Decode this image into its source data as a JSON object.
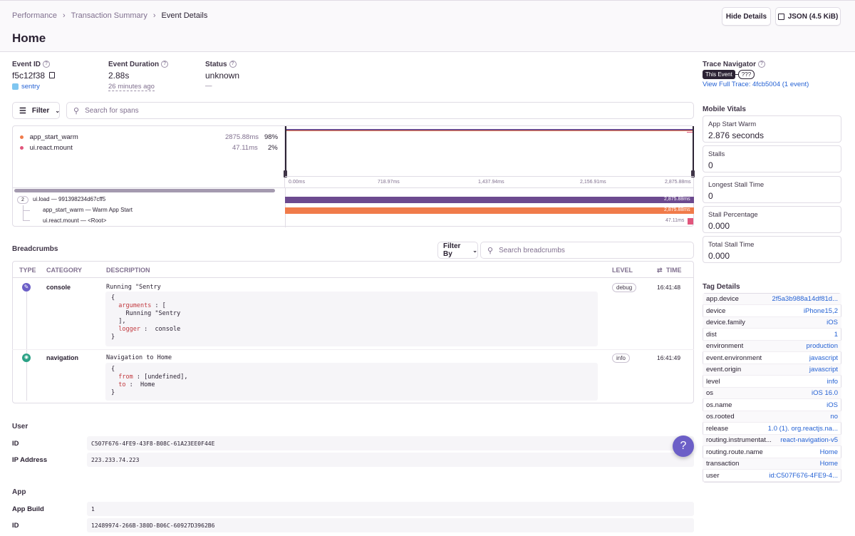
{
  "breadcrumb": [
    "Performance",
    "Transaction Summary",
    "Event Details"
  ],
  "page_title": "Home",
  "buttons": {
    "hide_details": "Hide Details",
    "json": "JSON (4.5 KiB)"
  },
  "event": {
    "id_label": "Event ID",
    "id": "f5c12f38",
    "project": "sentry",
    "duration_label": "Event Duration",
    "duration": "2.88s",
    "relative_time": "26 minutes ago",
    "status_label": "Status",
    "status": "unknown",
    "status_sub": "—"
  },
  "filter": {
    "label": "Filter",
    "search_placeholder": "Search for spans"
  },
  "ops": [
    {
      "name": "app_start_warm",
      "duration": "2875.88ms",
      "percent": "98%",
      "color": "#f07b4a"
    },
    {
      "name": "ui.react.mount",
      "duration": "47.11ms",
      "percent": "2%",
      "color": "#e1567c"
    }
  ],
  "timeline_ticks": [
    "0.00ms",
    "718.97ms",
    "1,437.94ms",
    "2,156.91ms",
    "2,875.88ms"
  ],
  "spans": [
    {
      "count": "2",
      "label": "ui.load — 991398234d67cff5",
      "duration": "2,875.88ms",
      "color": "#6c4a8f"
    },
    {
      "label": "app_start_warm — Warm App Start",
      "duration": "2,875.88ms",
      "color": "#f07b4a"
    },
    {
      "label": "ui.react.mount — <Root>",
      "duration": "47.11ms",
      "color": "#e1567c"
    }
  ],
  "breadcrumbs": {
    "title": "Breadcrumbs",
    "filter_by": "Filter By",
    "search_placeholder": "Search breadcrumbs",
    "columns": {
      "type": "TYPE",
      "category": "CATEGORY",
      "description": "DESCRIPTION",
      "level": "LEVEL",
      "time": "TIME"
    },
    "rows": [
      {
        "category": "console",
        "description": "Running \"Sentry",
        "level": "debug",
        "time": "16:41:48"
      },
      {
        "category": "navigation",
        "description": "Navigation to Home",
        "level": "info",
        "time": "16:41:49"
      }
    ]
  },
  "user": {
    "title": "User",
    "rows": [
      {
        "key": "ID",
        "value": "C507F676-4FE9-43F8-B08C-61A23EE0F44E"
      },
      {
        "key": "IP Address",
        "value": "223.233.74.223"
      }
    ]
  },
  "app": {
    "title": "App",
    "rows": [
      {
        "key": "App Build",
        "value": "1"
      },
      {
        "key": "ID",
        "value": "12489974-266B-380D-B06C-60927D3962B6"
      }
    ]
  },
  "trace": {
    "title": "Trace Navigator",
    "this_event": "This Event",
    "unknown": "???",
    "link": "View Full Trace: 4fcb5004 (1 event)"
  },
  "vitals": {
    "title": "Mobile Vitals",
    "items": [
      {
        "label": "App Start Warm",
        "value": "2.876 seconds"
      },
      {
        "label": "Stalls",
        "value": "0"
      },
      {
        "label": "Longest Stall Time",
        "value": "0"
      },
      {
        "label": "Stall Percentage",
        "value": "0.000"
      },
      {
        "label": "Total Stall Time",
        "value": "0.000"
      }
    ]
  },
  "tags": {
    "title": "Tag Details",
    "items": [
      {
        "key": "app.device",
        "value": "2f5a3b988a14df81d..."
      },
      {
        "key": "device",
        "value": "iPhone15,2"
      },
      {
        "key": "device.family",
        "value": "iOS"
      },
      {
        "key": "dist",
        "value": "1"
      },
      {
        "key": "environment",
        "value": "production"
      },
      {
        "key": "event.environment",
        "value": "javascript"
      },
      {
        "key": "event.origin",
        "value": "javascript"
      },
      {
        "key": "level",
        "value": "info"
      },
      {
        "key": "os",
        "value": "iOS 16.0"
      },
      {
        "key": "os.name",
        "value": "iOS"
      },
      {
        "key": "os.rooted",
        "value": "no"
      },
      {
        "key": "release",
        "value": "1.0 (1). org.reactjs.na..."
      },
      {
        "key": "routing.instrumentat...",
        "value": "react-navigation-v5"
      },
      {
        "key": "routing.route.name",
        "value": "Home"
      },
      {
        "key": "transaction",
        "value": "Home"
      },
      {
        "key": "user",
        "value": "id:C507F676-4FE9-4..."
      }
    ]
  },
  "help": "?"
}
